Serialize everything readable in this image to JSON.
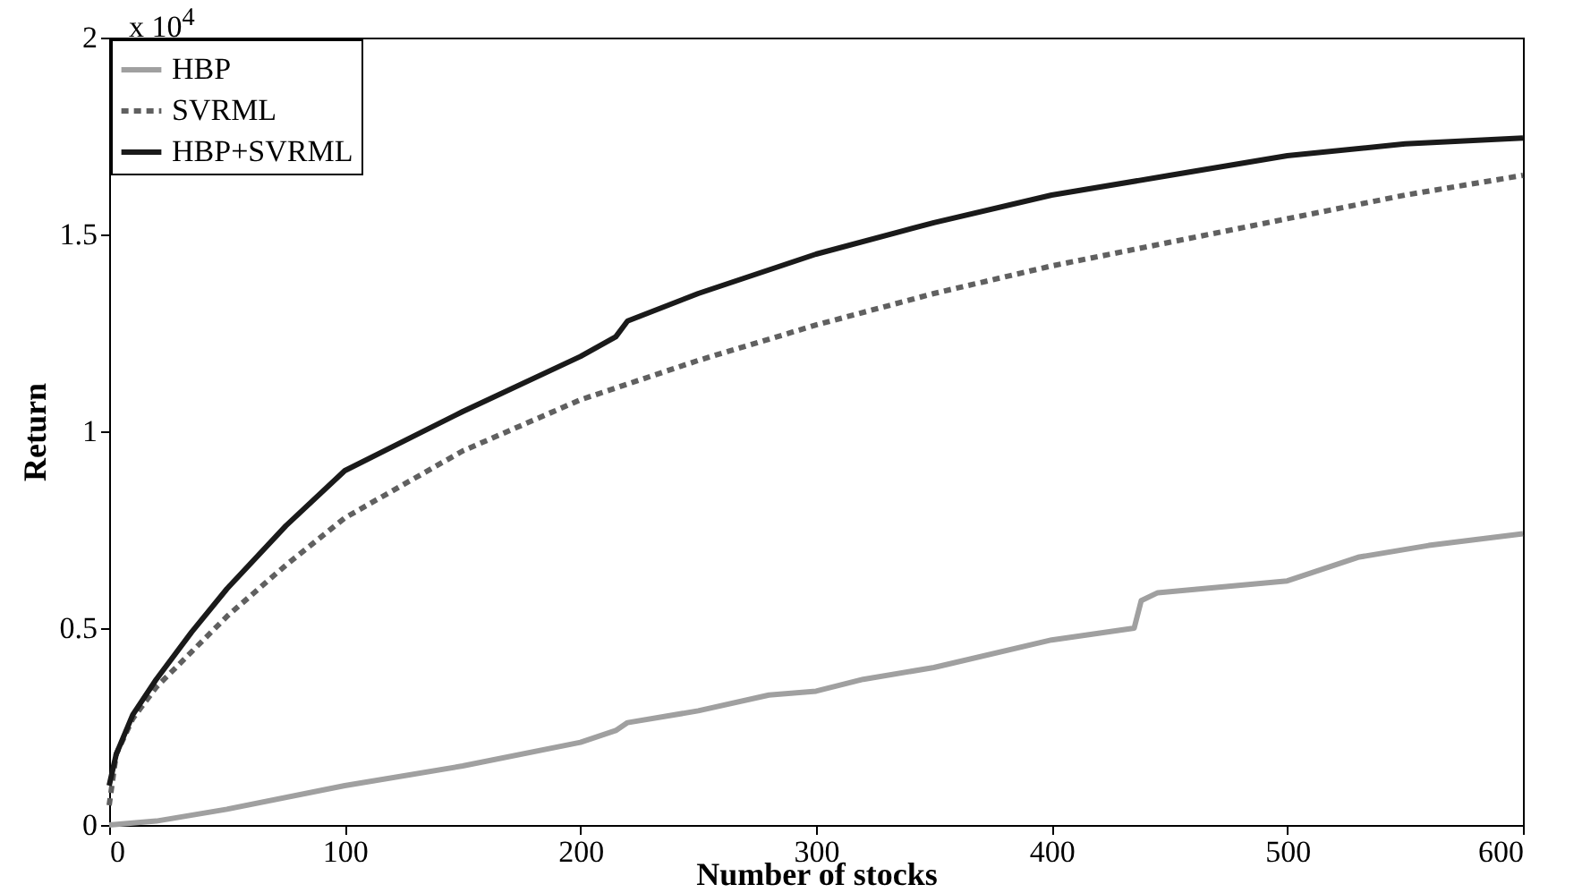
{
  "chart_data": {
    "type": "line",
    "xlabel": "Number of stocks",
    "ylabel": "Return",
    "annotations": [
      "x 10$^{4}$"
    ],
    "xlim": [
      0,
      600
    ],
    "xticks": [
      0,
      100,
      200,
      300,
      400,
      500,
      600
    ],
    "ylim": [
      0,
      2
    ],
    "yticks": [
      0,
      0.5,
      1,
      1.5,
      2
    ],
    "grid": false,
    "legend": "top left",
    "series": [
      {
        "name": "HBP",
        "color": "#a0a0a0",
        "line_style": "solid",
        "x": [
          0,
          20,
          50,
          100,
          150,
          200,
          215,
          220,
          250,
          280,
          300,
          320,
          350,
          400,
          435,
          438,
          445,
          500,
          530,
          560,
          600
        ],
        "values": [
          0,
          0.01,
          0.04,
          0.1,
          0.15,
          0.21,
          0.24,
          0.26,
          0.29,
          0.33,
          0.34,
          0.37,
          0.4,
          0.47,
          0.5,
          0.57,
          0.59,
          0.62,
          0.68,
          0.71,
          0.74
        ]
      },
      {
        "name": "SVRML",
        "color": "#606060",
        "line_style": "dashed",
        "x": [
          0,
          3,
          10,
          20,
          35,
          50,
          75,
          100,
          150,
          200,
          250,
          300,
          350,
          400,
          450,
          500,
          550,
          600
        ],
        "values": [
          0.05,
          0.18,
          0.27,
          0.35,
          0.44,
          0.53,
          0.66,
          0.78,
          0.95,
          1.08,
          1.18,
          1.27,
          1.35,
          1.42,
          1.48,
          1.54,
          1.6,
          1.65
        ]
      },
      {
        "name": "HBP+SVRML",
        "color": "#1a1a1a",
        "line_style": "solid",
        "x": [
          0,
          3,
          10,
          20,
          35,
          50,
          75,
          100,
          150,
          200,
          215,
          220,
          250,
          300,
          350,
          400,
          450,
          500,
          550,
          600
        ],
        "values": [
          0.1,
          0.18,
          0.28,
          0.37,
          0.49,
          0.6,
          0.76,
          0.9,
          1.05,
          1.19,
          1.24,
          1.28,
          1.35,
          1.45,
          1.53,
          1.6,
          1.65,
          1.7,
          1.73,
          1.745
        ]
      }
    ]
  }
}
